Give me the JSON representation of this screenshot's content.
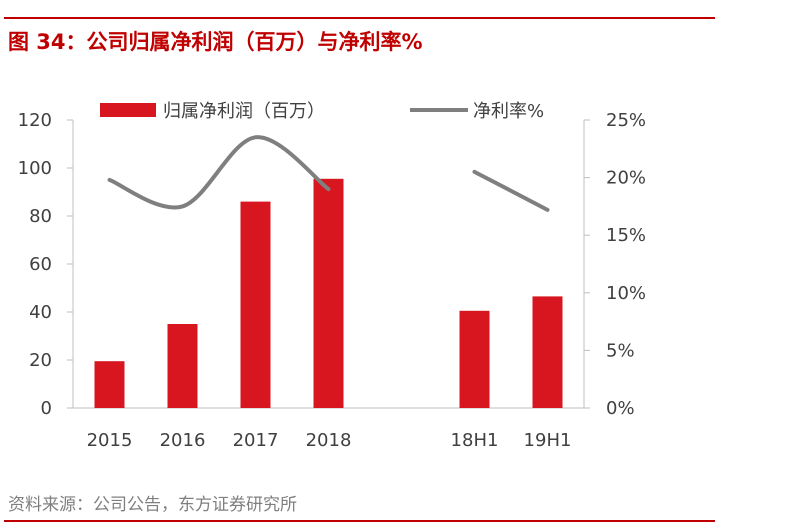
{
  "figure": {
    "title": "图 34：公司归属净利润（百万）与净利率%",
    "source": "资料来源：公司公告，东方证券研究所"
  },
  "chart_data": {
    "type": "bar",
    "categories": [
      "2015",
      "2016",
      "2017",
      "2018",
      "",
      "18H1",
      "19H1"
    ],
    "series": [
      {
        "name": "归属净利润（百万）",
        "type": "bar",
        "axis": "left",
        "color": "#d7161f",
        "values": [
          19.5,
          35,
          86,
          95.5,
          null,
          40.5,
          46.5
        ]
      },
      {
        "name": "净利率%",
        "type": "line",
        "axis": "right",
        "color": "#7f7f7f",
        "values": [
          19.8,
          17.5,
          23.5,
          19.0,
          null,
          20.5,
          17.2
        ]
      }
    ],
    "y_left": {
      "ticks": [
        "0",
        "20",
        "40",
        "60",
        "80",
        "100",
        "120"
      ],
      "range": [
        0,
        120
      ]
    },
    "y_right": {
      "ticks": [
        "0%",
        "5%",
        "10%",
        "15%",
        "20%",
        "25%"
      ],
      "range": [
        0,
        25
      ]
    },
    "legend": {
      "position": "top"
    },
    "grid": false
  }
}
